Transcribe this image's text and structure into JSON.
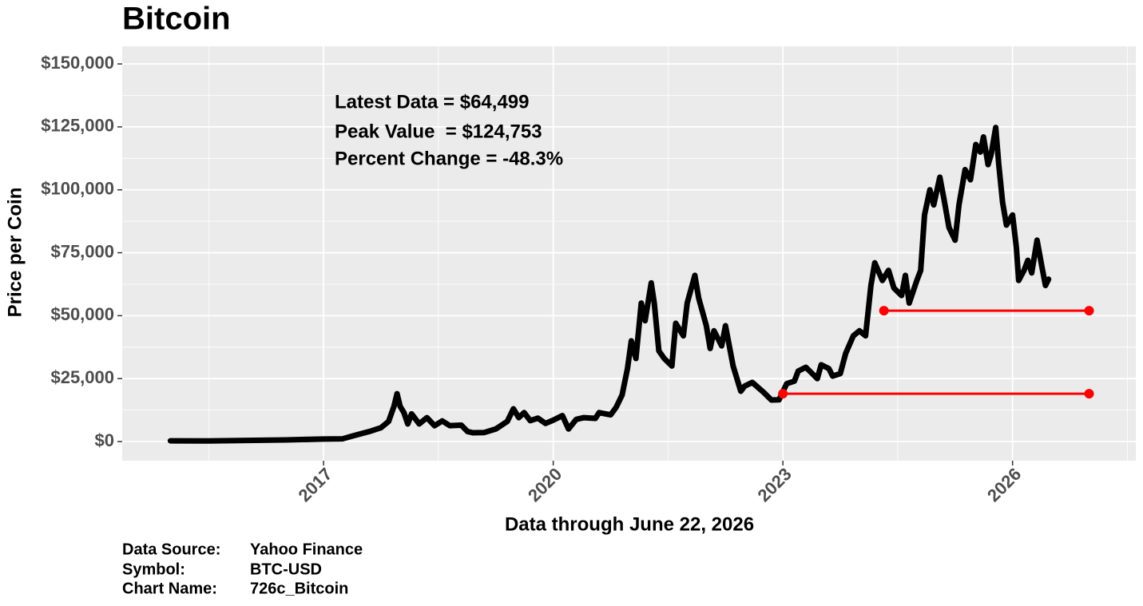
{
  "chart_data": {
    "type": "line",
    "title": "Bitcoin",
    "y_label": "Price per Coin",
    "x_label": "Data through June 22, 2026",
    "annotations": [
      "Latest Data = $64,499",
      "Peak Value  = $124,753",
      "Percent Change = -48.3%"
    ],
    "caption": [
      {
        "label": "Data Source:",
        "value": "Yahoo Finance"
      },
      {
        "label": "Symbol:",
        "value": "BTC-USD"
      },
      {
        "label": "Chart Name:",
        "value": "726c_Bitcoin"
      }
    ],
    "xlim": [
      2014.37,
      2027.61
    ],
    "ylim": [
      -7600,
      157000
    ],
    "xticks": [
      2017,
      2020,
      2023,
      2026
    ],
    "xminor": [
      2015.5,
      2018.5,
      2021.5,
      2024.5,
      2027.5
    ],
    "yticks": [
      {
        "value": 0,
        "label": "$0"
      },
      {
        "value": 25000,
        "label": "$25,000"
      },
      {
        "value": 50000,
        "label": "$50,000"
      },
      {
        "value": 75000,
        "label": "$75,000"
      },
      {
        "value": 100000,
        "label": "$100,000"
      },
      {
        "value": 125000,
        "label": "$125,000"
      },
      {
        "value": 150000,
        "label": "$150,000"
      }
    ],
    "yminor": [
      12500,
      37500,
      62500,
      87500,
      112500,
      137500
    ],
    "grid": true,
    "series": [
      {
        "color": "#000000",
        "x": [
          2015.0,
          2015.5,
          2016.0,
          2016.5,
          2017.0,
          2017.25,
          2017.4,
          2017.6,
          2017.75,
          2017.85,
          2017.92,
          2017.96,
          2018.0,
          2018.05,
          2018.1,
          2018.15,
          2018.25,
          2018.35,
          2018.45,
          2018.55,
          2018.65,
          2018.8,
          2018.88,
          2018.95,
          2019.1,
          2019.25,
          2019.4,
          2019.48,
          2019.55,
          2019.62,
          2019.7,
          2019.8,
          2019.9,
          2020.0,
          2020.12,
          2020.2,
          2020.3,
          2020.4,
          2020.55,
          2020.6,
          2020.75,
          2020.82,
          2020.9,
          2020.97,
          2021.02,
          2021.08,
          2021.15,
          2021.2,
          2021.28,
          2021.32,
          2021.38,
          2021.45,
          2021.55,
          2021.6,
          2021.7,
          2021.75,
          2021.85,
          2021.9,
          2022.0,
          2022.05,
          2022.1,
          2022.2,
          2022.25,
          2022.35,
          2022.45,
          2022.5,
          2022.6,
          2022.75,
          2022.85,
          2022.95,
          2023.05,
          2023.15,
          2023.2,
          2023.3,
          2023.45,
          2023.5,
          2023.6,
          2023.65,
          2023.75,
          2023.82,
          2023.92,
          2024.0,
          2024.08,
          2024.15,
          2024.2,
          2024.3,
          2024.38,
          2024.45,
          2024.55,
          2024.6,
          2024.65,
          2024.75,
          2024.8,
          2024.85,
          2024.92,
          2024.97,
          2025.05,
          2025.1,
          2025.17,
          2025.25,
          2025.3,
          2025.38,
          2025.45,
          2025.52,
          2025.58,
          2025.62,
          2025.68,
          2025.72,
          2025.78,
          2025.82,
          2025.87,
          2025.92,
          2026.0,
          2026.05,
          2026.08,
          2026.15,
          2026.2,
          2026.25,
          2026.32,
          2026.38,
          2026.43,
          2026.47
        ],
        "values": [
          300,
          260,
          430,
          650,
          1000,
          1100,
          2400,
          4000,
          5500,
          8000,
          14000,
          19000,
          14000,
          11500,
          7000,
          11000,
          7000,
          9500,
          6300,
          8200,
          6300,
          6500,
          4000,
          3500,
          3600,
          5000,
          8000,
          13000,
          9500,
          11500,
          8300,
          9300,
          7200,
          8500,
          10300,
          5000,
          8800,
          9500,
          9200,
          11500,
          10600,
          13500,
          18500,
          29000,
          40000,
          33000,
          55000,
          48000,
          63000,
          55000,
          36000,
          33000,
          30000,
          47000,
          42000,
          55000,
          66000,
          57000,
          46000,
          37000,
          44000,
          38000,
          46000,
          30000,
          20000,
          22000,
          23500,
          19500,
          16500,
          16600,
          23000,
          24000,
          28000,
          29500,
          25000,
          30500,
          29000,
          26000,
          27000,
          35000,
          42000,
          44000,
          42000,
          62000,
          71000,
          64000,
          68000,
          61000,
          58000,
          66000,
          55000,
          64000,
          68000,
          90000,
          100000,
          94000,
          105000,
          97000,
          85000,
          80000,
          94000,
          108000,
          104000,
          118000,
          115000,
          121000,
          110000,
          114000,
          124753,
          110000,
          95000,
          86000,
          90000,
          77000,
          64000,
          68000,
          72000,
          67000,
          80000,
          70000,
          62000,
          64499
        ]
      }
    ],
    "segments": [
      {
        "color": "#ff0000",
        "x": [
          2023.0,
          2027.0
        ],
        "values": [
          19000,
          19000
        ]
      },
      {
        "color": "#ff0000",
        "x": [
          2024.32,
          2027.0
        ],
        "values": [
          52000,
          52000
        ]
      }
    ]
  }
}
